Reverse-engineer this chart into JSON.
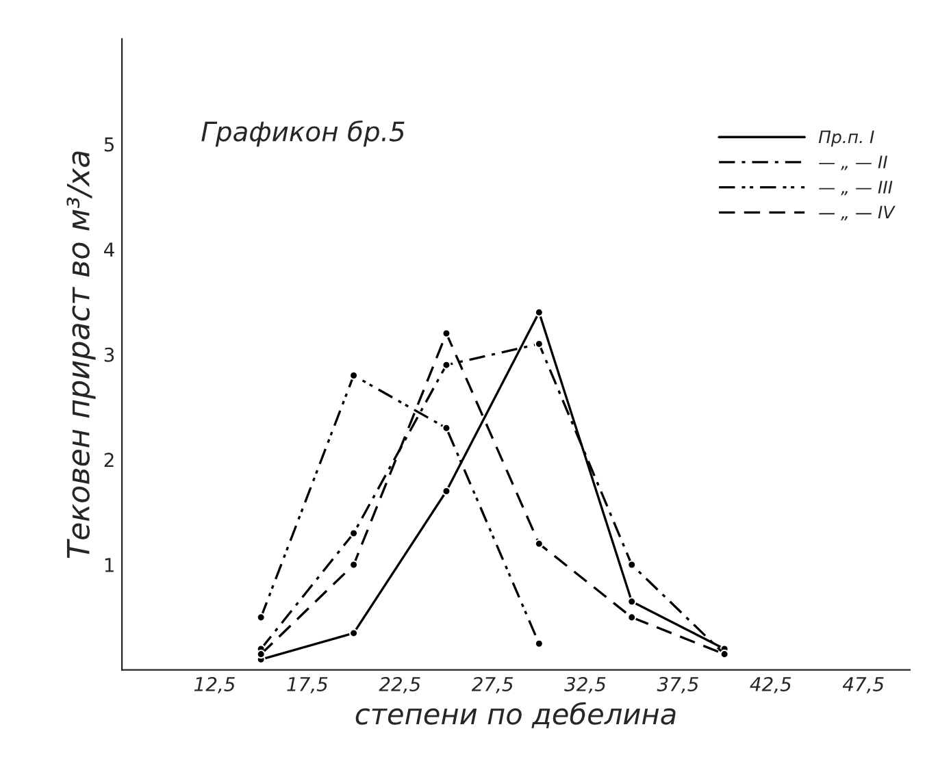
{
  "chart_data": {
    "type": "line",
    "title": "Графикон бр.5",
    "xlabel": "степени по дебелина",
    "ylabel": "Тековен прираст во м³/ха",
    "xlim": [
      7.5,
      50
    ],
    "ylim": [
      0,
      6
    ],
    "xticks": [
      {
        "value": 12.5,
        "label": "12,5"
      },
      {
        "value": 17.5,
        "label": "17,5"
      },
      {
        "value": 22.5,
        "label": "22,5"
      },
      {
        "value": 27.5,
        "label": "27,5"
      },
      {
        "value": 32.5,
        "label": "32,5"
      },
      {
        "value": 37.5,
        "label": "37,5"
      },
      {
        "value": 42.5,
        "label": "42,5"
      },
      {
        "value": 47.5,
        "label": "47,5"
      }
    ],
    "yticks": [
      1,
      2,
      3,
      4,
      5
    ],
    "grid": false,
    "legend": "top right",
    "marker": "circle",
    "series": [
      {
        "name": "Пр.п. I",
        "color": "#000000",
        "line_style": "solid",
        "x": [
          15,
          20,
          25,
          30,
          35,
          40
        ],
        "values": [
          0.1,
          0.35,
          1.7,
          3.4,
          0.65,
          0.2
        ]
      },
      {
        "name": "— „ — II",
        "color": "#000000",
        "line_style": "dashdot",
        "x": [
          15,
          20,
          25,
          30,
          35,
          40
        ],
        "values": [
          0.2,
          1.3,
          2.9,
          3.1,
          1.0,
          0.15
        ]
      },
      {
        "name": "— „ — III",
        "color": "#000000",
        "line_style": "dashdotdot",
        "x": [
          15,
          20,
          25,
          30
        ],
        "values": [
          0.5,
          2.8,
          2.3,
          0.25
        ]
      },
      {
        "name": "— „ — IV",
        "color": "#000000",
        "line_style": "dashed",
        "x": [
          15,
          20,
          25,
          30,
          35,
          40
        ],
        "values": [
          0.15,
          1.0,
          3.2,
          1.2,
          0.5,
          0.15
        ]
      }
    ]
  }
}
